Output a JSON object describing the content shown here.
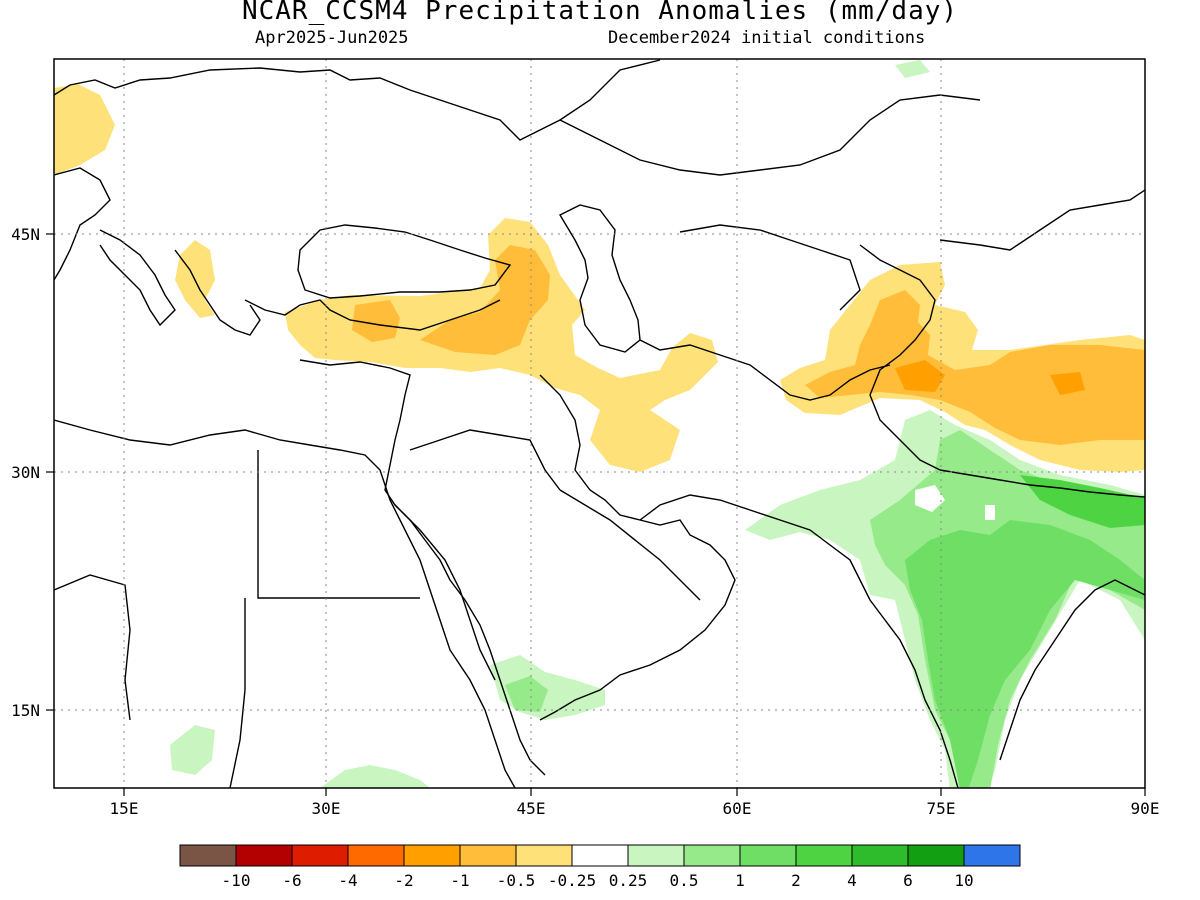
{
  "title": "NCAR_CCSM4 Precipitation Anomalies (mm/day)",
  "subtitle_left": "Apr2025-Jun2025",
  "subtitle_right": "December2024 initial conditions",
  "lon_labels": [
    "15E",
    "30E",
    "45E",
    "60E",
    "75E",
    "90E"
  ],
  "lat_labels": [
    "45N",
    "30N",
    "15N"
  ],
  "colorbar": {
    "colors": [
      "#7a5546",
      "#b30000",
      "#dd1c00",
      "#ff6a00",
      "#ff9f00",
      "#ffbd3a",
      "#ffe17a",
      "#ffffff",
      "#c8f5c0",
      "#96ea8a",
      "#6ede64",
      "#4ed443",
      "#2ebc2c",
      "#12a012",
      "#2f75ea"
    ],
    "labels": [
      "-10",
      "-6",
      "-4",
      "-2",
      "-1",
      "-0.5",
      "-0.25",
      "0.25",
      "0.5",
      "1",
      "2",
      "4",
      "6",
      "10"
    ]
  }
}
